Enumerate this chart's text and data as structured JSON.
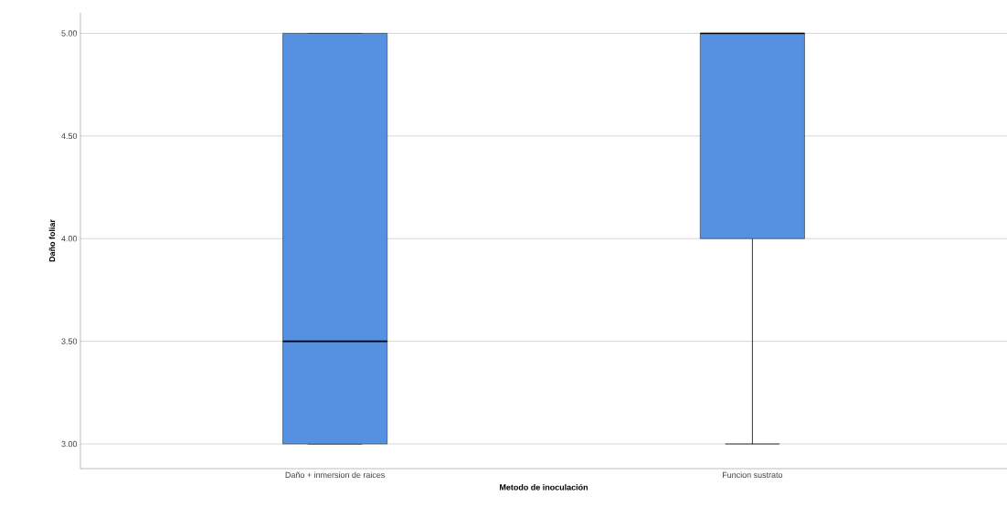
{
  "chart_data": {
    "type": "box",
    "categories": [
      "Daño + inmersion de raices",
      "Funcion sustrato"
    ],
    "boxes": [
      {
        "low": 3,
        "q1": 3,
        "median": 3.5,
        "q3": 5,
        "high": 5
      },
      {
        "low": 3,
        "q1": 4,
        "median": 5,
        "q3": 5,
        "high": 5
      }
    ],
    "color": "#5591e0",
    "xlabel": "Metodo de inoculación",
    "ylabel": "Daño foliar",
    "ylim": [
      2.88,
      5.1
    ],
    "yticks": [
      {
        "value": 3,
        "label": "3.00"
      },
      {
        "value": 3.5,
        "label": "3.50"
      },
      {
        "value": 4,
        "label": "4.00"
      },
      {
        "value": 4.5,
        "label": "4.50"
      },
      {
        "value": 5,
        "label": "5.00"
      }
    ],
    "grid": "y"
  }
}
